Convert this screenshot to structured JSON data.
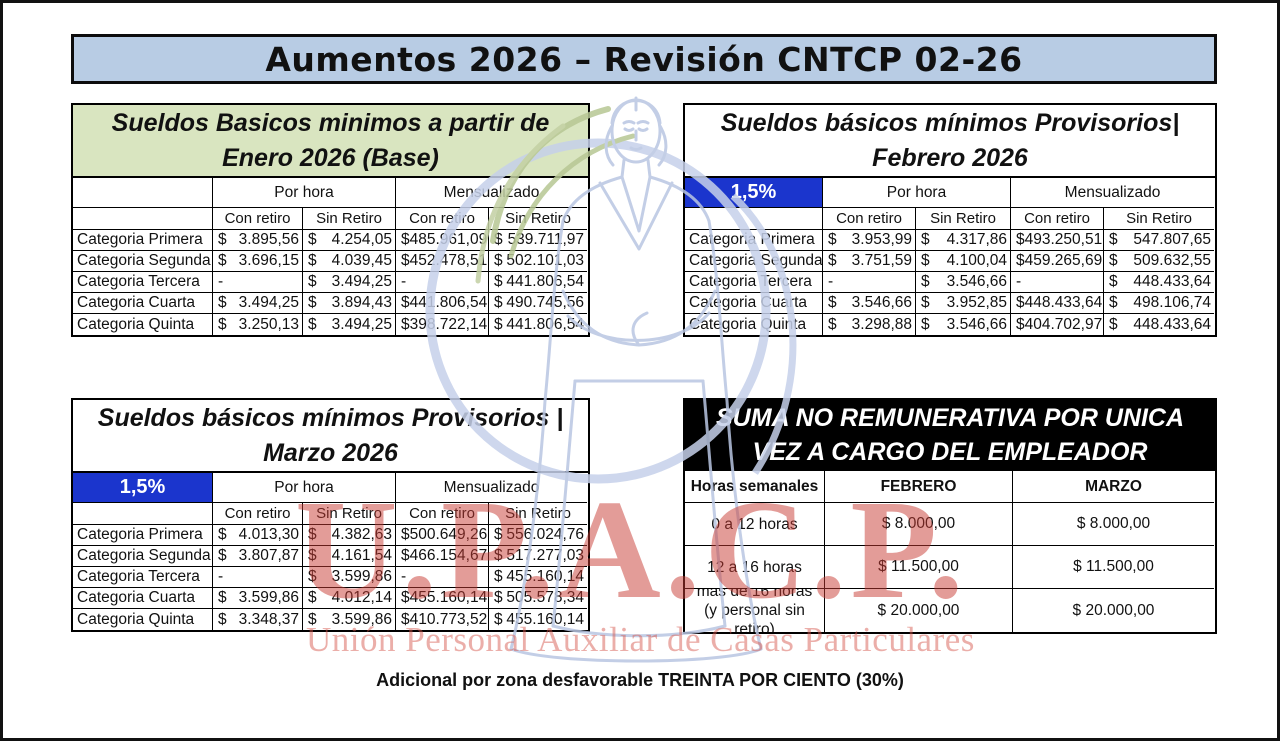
{
  "page": {
    "title": "Aumentos 2026 – Revisión CNTCP 02-26",
    "footer_note": "Adicional por zona desfavorable TREINTA POR CIENTO (30%)"
  },
  "watermark": {
    "acronym": "U.P.A.C.P.",
    "organization": "Unión Personal Auxiliar de Casas Particulares",
    "accent_red": "#c83a32",
    "figure_blue": "#b9c6e2",
    "leaf_green": "#b7c794"
  },
  "colors": {
    "title_bar_bg": "#b8cce4",
    "base_header_bg": "#d9e5c0",
    "badge_blue": "#1b35cd",
    "suma_header_bg": "#000000"
  },
  "tables": {
    "base": {
      "title_line1": "Sueldos Basicos minimos a partir de",
      "title_line2": "Enero 2026 (Base)",
      "group_headers": [
        "Por hora",
        "Mensualizado"
      ],
      "sub_headers": [
        "Con retiro",
        "Sin Retiro",
        "Con retiro",
        "Sin Retiro"
      ],
      "rows": [
        {
          "label": "Categoria Primera",
          "values": [
            "$ 3.895,56",
            "$ 4.254,05",
            "$ 485.961,09",
            "$ 539.711,97"
          ]
        },
        {
          "label": "Categoria Segunda",
          "values": [
            "$ 3.696,15",
            "$ 4.039,45",
            "$ 452.478,51",
            "$ 502.101,03"
          ]
        },
        {
          "label": "Categoria Tercera",
          "values": [
            "-",
            "$ 3.494,25",
            "-",
            "$ 441.806,54"
          ]
        },
        {
          "label": "Categoria Cuarta",
          "values": [
            "$ 3.494,25",
            "$ 3.894,43",
            "$ 441.806,54",
            "$ 490.745,56"
          ]
        },
        {
          "label": "Categoria Quinta",
          "values": [
            "$ 3.250,13",
            "$ 3.494,25",
            "$ 398.722,14",
            "$ 441.806,54"
          ]
        }
      ]
    },
    "febrero": {
      "title_line1": "Sueldos básicos mínimos Provisorios|",
      "title_line2": "Febrero 2026",
      "badge": "1,5%",
      "group_headers": [
        "Por hora",
        "Mensualizado"
      ],
      "sub_headers": [
        "Con retiro",
        "Sin Retiro",
        "Con retiro",
        "Sin Retiro"
      ],
      "rows": [
        {
          "label": "Categoria Primera",
          "values": [
            "$ 3.953,99",
            "$ 4.317,86",
            "$ 493.250,51",
            "$ 547.807,65"
          ]
        },
        {
          "label": "Categoria Segunda",
          "values": [
            "$ 3.751,59",
            "$ 4.100,04",
            "$ 459.265,69",
            "$ 509.632,55"
          ]
        },
        {
          "label": "Categoria Tercera",
          "values": [
            "-",
            "$ 3.546,66",
            "-",
            "$ 448.433,64"
          ]
        },
        {
          "label": "Categoria Cuarta",
          "values": [
            "$ 3.546,66",
            "$ 3.952,85",
            "$ 448.433,64",
            "$ 498.106,74"
          ]
        },
        {
          "label": "Categoria Quinta",
          "values": [
            "$ 3.298,88",
            "$ 3.546,66",
            "$ 404.702,97",
            "$ 448.433,64"
          ]
        }
      ]
    },
    "marzo": {
      "title_line1": "Sueldos básicos mínimos Provisorios |",
      "title_line2": "Marzo 2026",
      "badge": "1,5%",
      "group_headers": [
        "Por hora",
        "Mensualizado"
      ],
      "sub_headers": [
        "Con retiro",
        "Sin Retiro",
        "Con retiro",
        "Sin Retiro"
      ],
      "rows": [
        {
          "label": "Categoria Primera",
          "values": [
            "$ 4.013,30",
            "$ 4.382,63",
            "$ 500.649,26",
            "$ 556.024,76"
          ]
        },
        {
          "label": "Categoria Segunda",
          "values": [
            "$ 3.807,87",
            "$ 4.161,54",
            "$ 466.154,67",
            "$ 517.277,03"
          ]
        },
        {
          "label": "Categoria Tercera",
          "values": [
            "-",
            "$ 3.599,86",
            "-",
            "$ 455.160,14"
          ]
        },
        {
          "label": "Categoria Cuarta",
          "values": [
            "$ 3.599,86",
            "$ 4.012,14",
            "$ 455.160,14",
            "$ 505.578,34"
          ]
        },
        {
          "label": "Categoria Quinta",
          "values": [
            "$ 3.348,37",
            "$ 3.599,86",
            "$ 410.773,52",
            "$ 455.160,14"
          ]
        }
      ]
    },
    "suma": {
      "title_line1": "SUMA NO REMUNERATIVA POR UNICA",
      "title_line2": "VEZ A CARGO DEL EMPLEADOR",
      "headers": [
        "Horas semanales",
        "FEBRERO",
        "MARZO"
      ],
      "rows": [
        {
          "label": "0 a 12 horas",
          "values": [
            "$ 8.000,00",
            "$ 8.000,00"
          ]
        },
        {
          "label": "12 a 16 horas",
          "values": [
            "$ 11.500,00",
            "$ 11.500,00"
          ]
        },
        {
          "label": "mas de 16 horas (y personal sin retiro)",
          "values": [
            "$ 20.000,00",
            "$ 20.000,00"
          ]
        }
      ]
    }
  }
}
